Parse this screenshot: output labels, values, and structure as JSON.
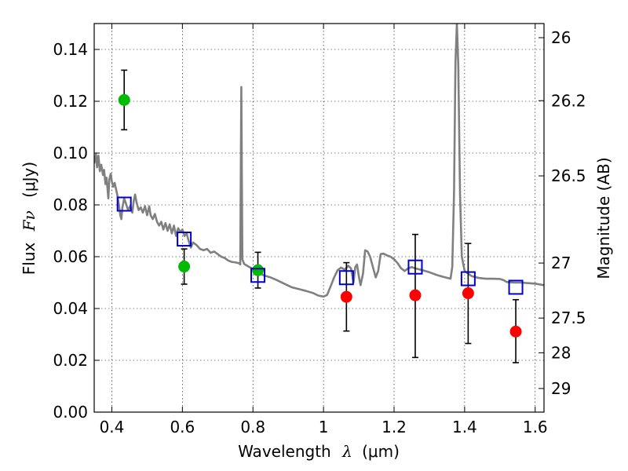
{
  "chart_data": {
    "type": "scatter",
    "xlabel": "Wavelength",
    "xlabel_symbol": "λ",
    "xlabel_unit": "(μm)",
    "ylabel": "Flux",
    "ylabel_symbol": "Fν",
    "ylabel_unit": "(μJy)",
    "y2label": "Magnitude (AB)",
    "xlim": [
      0.35,
      1.625
    ],
    "ylim": [
      0.0,
      0.15
    ],
    "grid": true,
    "x_ticks": [
      {
        "value": 0.4,
        "label": "0.4"
      },
      {
        "value": 0.6,
        "label": "0.6"
      },
      {
        "value": 0.8,
        "label": "0.8"
      },
      {
        "value": 1.0,
        "label": "1"
      },
      {
        "value": 1.2,
        "label": "1.2"
      },
      {
        "value": 1.4,
        "label": "1.4"
      },
      {
        "value": 1.6,
        "label": "1.6"
      }
    ],
    "y_ticks": [
      {
        "value": 0.0,
        "label": "0.00"
      },
      {
        "value": 0.02,
        "label": "0.02"
      },
      {
        "value": 0.04,
        "label": "0.04"
      },
      {
        "value": 0.06,
        "label": "0.06"
      },
      {
        "value": 0.08,
        "label": "0.08"
      },
      {
        "value": 0.1,
        "label": "0.10"
      },
      {
        "value": 0.12,
        "label": "0.12"
      },
      {
        "value": 0.14,
        "label": "0.14"
      }
    ],
    "y2_ticks": [
      {
        "mag": 26,
        "label": "26"
      },
      {
        "mag": 26.2,
        "label": "26.2"
      },
      {
        "mag": 26.5,
        "label": "26.5"
      },
      {
        "mag": 27,
        "label": "27"
      },
      {
        "mag": 27.5,
        "label": "27.5"
      },
      {
        "mag": 28,
        "label": "28"
      },
      {
        "mag": 29,
        "label": "29"
      }
    ],
    "series": [
      {
        "marker": "circle",
        "color": "#00bb00",
        "points": [
          {
            "x": 0.435,
            "y": 0.1205,
            "err_lo": 0.0115,
            "err_hi": 0.0115
          },
          {
            "x": 0.605,
            "y": 0.0562,
            "err_lo": 0.0068,
            "err_hi": 0.0068
          },
          {
            "x": 0.814,
            "y": 0.0548,
            "err_lo": 0.0069,
            "err_hi": 0.0069
          }
        ]
      },
      {
        "marker": "circle",
        "color": "#ff0000",
        "points": [
          {
            "x": 1.065,
            "y": 0.0445,
            "err_lo": 0.0132,
            "err_hi": 0.0132
          },
          {
            "x": 1.26,
            "y": 0.0451,
            "err_lo": 0.024,
            "err_hi": 0.0235
          },
          {
            "x": 1.41,
            "y": 0.0459,
            "err_lo": 0.0194,
            "err_hi": 0.0192
          },
          {
            "x": 1.545,
            "y": 0.0311,
            "err_lo": 0.012,
            "err_hi": 0.0123
          }
        ]
      },
      {
        "marker": "open-square",
        "color": "#0000cc",
        "points": [
          {
            "x": 0.435,
            "y": 0.0803
          },
          {
            "x": 0.605,
            "y": 0.0668
          },
          {
            "x": 0.814,
            "y": 0.0528
          },
          {
            "x": 1.065,
            "y": 0.0519
          },
          {
            "x": 1.26,
            "y": 0.056
          },
          {
            "x": 1.41,
            "y": 0.0515
          },
          {
            "x": 1.545,
            "y": 0.0482
          }
        ]
      },
      {
        "marker": "line",
        "color": "#808080",
        "points": [
          {
            "x": 0.35,
            "y": 0.096
          },
          {
            "x": 0.355,
            "y": 0.0995
          },
          {
            "x": 0.358,
            "y": 0.0945
          },
          {
            "x": 0.362,
            "y": 0.099
          },
          {
            "x": 0.366,
            "y": 0.093
          },
          {
            "x": 0.37,
            "y": 0.0955
          },
          {
            "x": 0.375,
            "y": 0.0915
          },
          {
            "x": 0.378,
            "y": 0.0935
          },
          {
            "x": 0.382,
            "y": 0.088
          },
          {
            "x": 0.385,
            "y": 0.0905
          },
          {
            "x": 0.388,
            "y": 0.086
          },
          {
            "x": 0.39,
            "y": 0.0825
          },
          {
            "x": 0.393,
            "y": 0.09
          },
          {
            "x": 0.397,
            "y": 0.092
          },
          {
            "x": 0.4,
            "y": 0.089
          },
          {
            "x": 0.404,
            "y": 0.087
          },
          {
            "x": 0.408,
            "y": 0.0885
          },
          {
            "x": 0.412,
            "y": 0.086
          },
          {
            "x": 0.416,
            "y": 0.0835
          },
          {
            "x": 0.42,
            "y": 0.08
          },
          {
            "x": 0.424,
            "y": 0.076
          },
          {
            "x": 0.427,
            "y": 0.0745
          },
          {
            "x": 0.43,
            "y": 0.079
          },
          {
            "x": 0.435,
            "y": 0.0825
          },
          {
            "x": 0.44,
            "y": 0.0805
          },
          {
            "x": 0.446,
            "y": 0.078
          },
          {
            "x": 0.452,
            "y": 0.0795
          },
          {
            "x": 0.458,
            "y": 0.077
          },
          {
            "x": 0.462,
            "y": 0.0815
          },
          {
            "x": 0.466,
            "y": 0.084
          },
          {
            "x": 0.47,
            "y": 0.081
          },
          {
            "x": 0.476,
            "y": 0.078
          },
          {
            "x": 0.482,
            "y": 0.079
          },
          {
            "x": 0.488,
            "y": 0.077
          },
          {
            "x": 0.494,
            "y": 0.0795
          },
          {
            "x": 0.5,
            "y": 0.076
          },
          {
            "x": 0.506,
            "y": 0.0795
          },
          {
            "x": 0.51,
            "y": 0.076
          },
          {
            "x": 0.516,
            "y": 0.0745
          },
          {
            "x": 0.522,
            "y": 0.0765
          },
          {
            "x": 0.528,
            "y": 0.0735
          },
          {
            "x": 0.534,
            "y": 0.072
          },
          {
            "x": 0.54,
            "y": 0.0735
          },
          {
            "x": 0.546,
            "y": 0.0705
          },
          {
            "x": 0.552,
            "y": 0.073
          },
          {
            "x": 0.558,
            "y": 0.07
          },
          {
            "x": 0.564,
            "y": 0.0725
          },
          {
            "x": 0.57,
            "y": 0.069
          },
          {
            "x": 0.576,
            "y": 0.072
          },
          {
            "x": 0.582,
            "y": 0.068
          },
          {
            "x": 0.588,
            "y": 0.071
          },
          {
            "x": 0.594,
            "y": 0.0695
          },
          {
            "x": 0.6,
            "y": 0.0705
          },
          {
            "x": 0.606,
            "y": 0.068
          },
          {
            "x": 0.612,
            "y": 0.069
          },
          {
            "x": 0.618,
            "y": 0.066
          },
          {
            "x": 0.624,
            "y": 0.0635
          },
          {
            "x": 0.63,
            "y": 0.0655
          },
          {
            "x": 0.64,
            "y": 0.0645
          },
          {
            "x": 0.65,
            "y": 0.063
          },
          {
            "x": 0.66,
            "y": 0.0625
          },
          {
            "x": 0.67,
            "y": 0.063
          },
          {
            "x": 0.68,
            "y": 0.0615
          },
          {
            "x": 0.69,
            "y": 0.062
          },
          {
            "x": 0.7,
            "y": 0.061
          },
          {
            "x": 0.71,
            "y": 0.06
          },
          {
            "x": 0.72,
            "y": 0.0595
          },
          {
            "x": 0.73,
            "y": 0.0585
          },
          {
            "x": 0.74,
            "y": 0.058
          },
          {
            "x": 0.75,
            "y": 0.0578
          },
          {
            "x": 0.76,
            "y": 0.0575
          },
          {
            "x": 0.764,
            "y": 0.057
          },
          {
            "x": 0.767,
            "y": 0.1255
          },
          {
            "x": 0.77,
            "y": 0.059
          },
          {
            "x": 0.775,
            "y": 0.0572
          },
          {
            "x": 0.79,
            "y": 0.056
          },
          {
            "x": 0.81,
            "y": 0.0545
          },
          {
            "x": 0.83,
            "y": 0.0528
          },
          {
            "x": 0.85,
            "y": 0.052
          },
          {
            "x": 0.87,
            "y": 0.0508
          },
          {
            "x": 0.89,
            "y": 0.0495
          },
          {
            "x": 0.91,
            "y": 0.0482
          },
          {
            "x": 0.93,
            "y": 0.0475
          },
          {
            "x": 0.95,
            "y": 0.0468
          },
          {
            "x": 0.97,
            "y": 0.046
          },
          {
            "x": 0.985,
            "y": 0.045
          },
          {
            "x": 1.0,
            "y": 0.0446
          },
          {
            "x": 1.01,
            "y": 0.0452
          },
          {
            "x": 1.02,
            "y": 0.0485
          },
          {
            "x": 1.03,
            "y": 0.052
          },
          {
            "x": 1.04,
            "y": 0.0548
          },
          {
            "x": 1.05,
            "y": 0.0558
          },
          {
            "x": 1.06,
            "y": 0.055
          },
          {
            "x": 1.07,
            "y": 0.0565
          },
          {
            "x": 1.078,
            "y": 0.0555
          },
          {
            "x": 1.085,
            "y": 0.05
          },
          {
            "x": 1.09,
            "y": 0.056
          },
          {
            "x": 1.095,
            "y": 0.057
          },
          {
            "x": 1.1,
            "y": 0.0525
          },
          {
            "x": 1.105,
            "y": 0.049
          },
          {
            "x": 1.112,
            "y": 0.0535
          },
          {
            "x": 1.118,
            "y": 0.0625
          },
          {
            "x": 1.125,
            "y": 0.062
          },
          {
            "x": 1.132,
            "y": 0.06
          },
          {
            "x": 1.14,
            "y": 0.056
          },
          {
            "x": 1.148,
            "y": 0.052
          },
          {
            "x": 1.155,
            "y": 0.0545
          },
          {
            "x": 1.162,
            "y": 0.061
          },
          {
            "x": 1.17,
            "y": 0.0612
          },
          {
            "x": 1.18,
            "y": 0.0605
          },
          {
            "x": 1.19,
            "y": 0.06
          },
          {
            "x": 1.2,
            "y": 0.059
          },
          {
            "x": 1.21,
            "y": 0.0575
          },
          {
            "x": 1.22,
            "y": 0.0555
          },
          {
            "x": 1.23,
            "y": 0.0545
          },
          {
            "x": 1.24,
            "y": 0.0555
          },
          {
            "x": 1.25,
            "y": 0.056
          },
          {
            "x": 1.26,
            "y": 0.0555
          },
          {
            "x": 1.28,
            "y": 0.0548
          },
          {
            "x": 1.3,
            "y": 0.054
          },
          {
            "x": 1.32,
            "y": 0.053
          },
          {
            "x": 1.34,
            "y": 0.0522
          },
          {
            "x": 1.36,
            "y": 0.0515
          },
          {
            "x": 1.365,
            "y": 0.056
          },
          {
            "x": 1.37,
            "y": 0.085
          },
          {
            "x": 1.374,
            "y": 0.135
          },
          {
            "x": 1.378,
            "y": 0.15
          },
          {
            "x": 1.382,
            "y": 0.134
          },
          {
            "x": 1.387,
            "y": 0.084
          },
          {
            "x": 1.392,
            "y": 0.06
          },
          {
            "x": 1.4,
            "y": 0.0545
          },
          {
            "x": 1.42,
            "y": 0.0525
          },
          {
            "x": 1.44,
            "y": 0.0518
          },
          {
            "x": 1.46,
            "y": 0.0515
          },
          {
            "x": 1.48,
            "y": 0.0515
          },
          {
            "x": 1.5,
            "y": 0.0514
          },
          {
            "x": 1.51,
            "y": 0.051
          },
          {
            "x": 1.52,
            "y": 0.0502
          },
          {
            "x": 1.54,
            "y": 0.05
          },
          {
            "x": 1.56,
            "y": 0.05
          },
          {
            "x": 1.58,
            "y": 0.0498
          },
          {
            "x": 1.6,
            "y": 0.0496
          },
          {
            "x": 1.625,
            "y": 0.049
          }
        ]
      }
    ]
  }
}
